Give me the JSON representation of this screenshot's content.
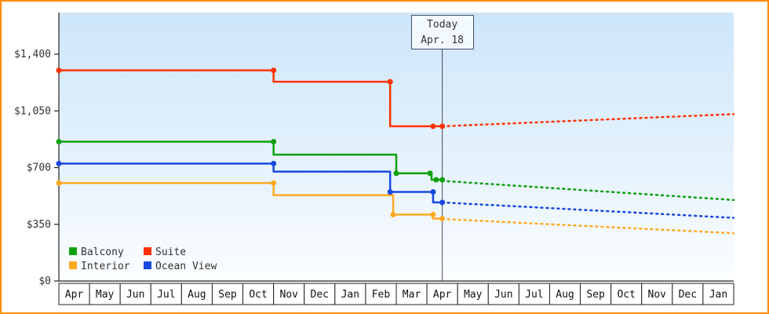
{
  "chart_data": {
    "type": "line",
    "categories": [
      "Apr",
      "May",
      "Jun",
      "Jul",
      "Aug",
      "Sep",
      "Oct",
      "Nov",
      "Dec",
      "Jan",
      "Feb",
      "Mar",
      "Apr",
      "May",
      "Jun",
      "Jul",
      "Aug",
      "Sep",
      "Oct",
      "Nov",
      "Dec",
      "Jan"
    ],
    "y_ticks": [
      {
        "v": 0,
        "label": "$0"
      },
      {
        "v": 350,
        "label": "$350"
      },
      {
        "v": 700,
        "label": "$700"
      },
      {
        "v": 1050,
        "label": "$1,050"
      },
      {
        "v": 1400,
        "label": "$1,400"
      }
    ],
    "ylim": [
      0,
      1655
    ],
    "today": {
      "x": 12.5,
      "line1": "Today",
      "line2": "Apr. 18"
    },
    "legend_order": [
      "Balcony",
      "Suite",
      "Interior",
      "Ocean View"
    ],
    "series": [
      {
        "name": "Balcony",
        "color": "#0FA00F",
        "solid": [
          [
            0,
            860
          ],
          [
            7,
            860
          ],
          [
            7,
            780
          ],
          [
            11,
            780
          ],
          [
            11,
            665
          ],
          [
            12.15,
            665
          ],
          [
            12.15,
            625
          ],
          [
            12.5,
            625
          ]
        ],
        "points": [
          [
            0,
            860
          ],
          [
            7,
            860
          ],
          [
            11,
            665
          ],
          [
            12.1,
            665
          ],
          [
            12.3,
            625
          ],
          [
            12.5,
            625
          ]
        ],
        "dotted": [
          [
            12.5,
            618
          ],
          [
            22,
            500
          ]
        ]
      },
      {
        "name": "Suite",
        "color": "#FF3300",
        "solid": [
          [
            0,
            1300
          ],
          [
            7,
            1300
          ],
          [
            7,
            1230
          ],
          [
            10.8,
            1230
          ],
          [
            10.8,
            955
          ],
          [
            12.5,
            955
          ]
        ],
        "points": [
          [
            0,
            1300
          ],
          [
            7,
            1300
          ],
          [
            10.8,
            1230
          ],
          [
            12.2,
            955
          ],
          [
            12.5,
            955
          ]
        ],
        "dotted": [
          [
            12.5,
            955
          ],
          [
            22,
            1030
          ]
        ]
      },
      {
        "name": "Interior",
        "color": "#FFAA22",
        "solid": [
          [
            0,
            605
          ],
          [
            7,
            605
          ],
          [
            7,
            530
          ],
          [
            10.9,
            530
          ],
          [
            10.9,
            410
          ],
          [
            12.2,
            410
          ],
          [
            12.2,
            385
          ],
          [
            12.5,
            385
          ]
        ],
        "points": [
          [
            0,
            605
          ],
          [
            7,
            605
          ],
          [
            10.9,
            410
          ],
          [
            12.2,
            410
          ],
          [
            12.5,
            385
          ]
        ],
        "dotted": [
          [
            12.5,
            383
          ],
          [
            22,
            295
          ]
        ]
      },
      {
        "name": "Ocean View",
        "color": "#1847E0",
        "solid": [
          [
            0,
            725
          ],
          [
            7,
            725
          ],
          [
            7,
            675
          ],
          [
            10.8,
            675
          ],
          [
            10.8,
            550
          ],
          [
            12.2,
            550
          ],
          [
            12.2,
            485
          ],
          [
            12.5,
            485
          ]
        ],
        "points": [
          [
            0,
            725
          ],
          [
            7,
            725
          ],
          [
            10.8,
            550
          ],
          [
            12.2,
            550
          ],
          [
            12.5,
            485
          ]
        ],
        "dotted": [
          [
            12.5,
            485
          ],
          [
            22,
            390
          ]
        ]
      }
    ],
    "colors": {
      "frame": "#FF8A00",
      "axis": "#222222",
      "text": "#333333",
      "today_line": "#4A4A5A",
      "plot_top": "#CDE6FA",
      "plot_bottom": "#FCFEFF"
    }
  }
}
